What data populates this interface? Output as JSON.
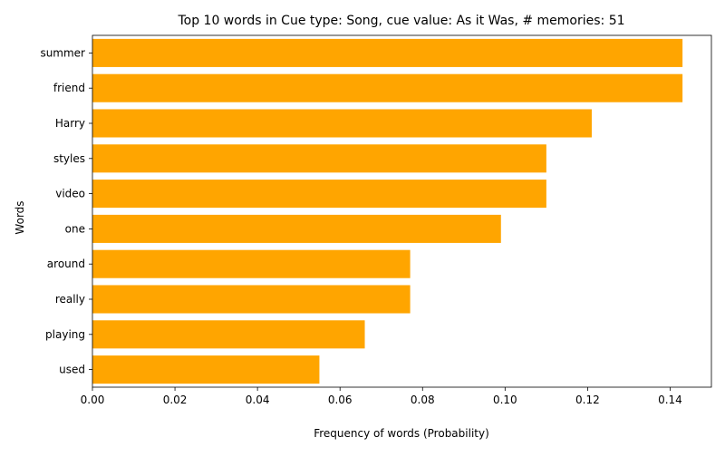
{
  "chart_data": {
    "type": "bar",
    "orientation": "horizontal",
    "title": "Top 10 words in Cue type: Song, cue value: As it Was, # memories: 51",
    "xlabel": "Frequency of words (Probability)",
    "ylabel": "Words",
    "categories": [
      "summer",
      "friend",
      "Harry",
      "styles",
      "video",
      "one",
      "around",
      "really",
      "playing",
      "used"
    ],
    "values": [
      0.143,
      0.143,
      0.121,
      0.11,
      0.11,
      0.099,
      0.077,
      0.077,
      0.066,
      0.055
    ],
    "xlim": [
      0,
      0.15
    ],
    "xticks": [
      0.0,
      0.02,
      0.04,
      0.06,
      0.08,
      0.1,
      0.12,
      0.14
    ],
    "xtick_labels": [
      "0.00",
      "0.02",
      "0.04",
      "0.06",
      "0.08",
      "0.10",
      "0.12",
      "0.14"
    ],
    "grid": false,
    "legend": "none",
    "bar_color": "#FFA500"
  }
}
